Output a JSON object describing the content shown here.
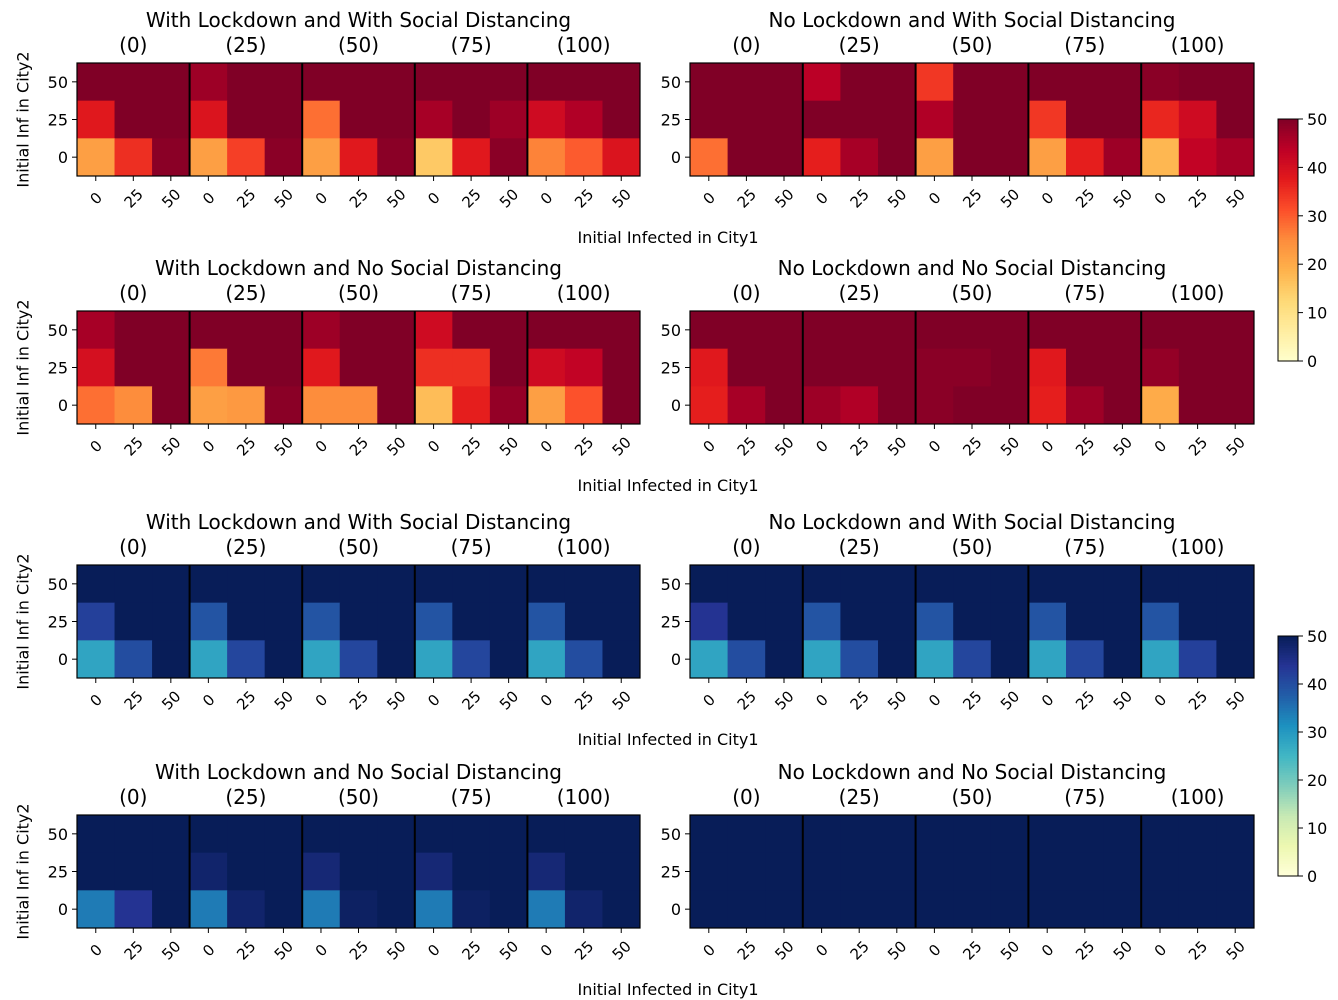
{
  "chart_data": {
    "type": "heatmap",
    "subgroup_labels": [
      "(0)",
      "(25)",
      "(50)",
      "(75)",
      "(100)"
    ],
    "x_ticks": [
      "0",
      "25",
      "50"
    ],
    "y_ticks": [
      "50",
      "25",
      "0"
    ],
    "xlabel": "Initial Infected in City1",
    "ylabel": "Initial Inf in City2",
    "colorbars": [
      {
        "id": "red",
        "colormap": "YlOrRd",
        "range": [
          0,
          50
        ],
        "ticks": [
          "50",
          "40",
          "30",
          "20",
          "10",
          "0"
        ]
      },
      {
        "id": "blue",
        "colormap": "YlGnBu",
        "range": [
          0,
          50
        ],
        "ticks": [
          "50",
          "40",
          "30",
          "20",
          "10",
          "0"
        ]
      }
    ],
    "rows": [
      {
        "xlabel": "Initial Infected in City1",
        "panels": [
          {
            "title": "With Lockdown and With Social Distancing",
            "colormap": "red",
            "grids": [
              [
                [
                  50,
                  50,
                  50
                ],
                [
                  38,
                  50,
                  50
                ],
                [
                  22,
                  35,
                  49
                ]
              ],
              [
                [
                  47,
                  50,
                  50
                ],
                [
                  39,
                  50,
                  50
                ],
                [
                  22,
                  33,
                  49
                ]
              ],
              [
                [
                  50,
                  50,
                  50
                ],
                [
                  28,
                  50,
                  50
                ],
                [
                  22,
                  38,
                  49
                ]
              ],
              [
                [
                  50,
                  50,
                  50
                ],
                [
                  46,
                  50,
                  47
                ],
                [
                  15,
                  38,
                  49
                ]
              ],
              [
                [
                  50,
                  50,
                  50
                ],
                [
                  41,
                  45,
                  50
                ],
                [
                  26,
                  30,
                  39
                ]
              ]
            ]
          },
          {
            "title": "No Lockdown and With Social Distancing",
            "colormap": "red",
            "grids": [
              [
                [
                  50,
                  50,
                  50
                ],
                [
                  50,
                  50,
                  50
                ],
                [
                  28,
                  50,
                  50
                ]
              ],
              [
                [
                  44,
                  50,
                  50
                ],
                [
                  50,
                  50,
                  50
                ],
                [
                  37,
                  46,
                  50
                ]
              ],
              [
                [
                  34,
                  50,
                  50
                ],
                [
                  45,
                  50,
                  50
                ],
                [
                  22,
                  50,
                  50
                ]
              ],
              [
                [
                  50,
                  50,
                  50
                ],
                [
                  34,
                  50,
                  50
                ],
                [
                  22,
                  37,
                  47
                ]
              ],
              [
                [
                  49,
                  50,
                  50
                ],
                [
                  36,
                  41,
                  50
                ],
                [
                  18,
                  43,
                  46
                ]
              ]
            ]
          }
        ]
      },
      {
        "xlabel": "Initial Infected in City1",
        "panels": [
          {
            "title": "With Lockdown and No Social Distancing",
            "colormap": "red",
            "grids": [
              [
                [
                  46,
                  50,
                  50
                ],
                [
                  40,
                  50,
                  50
                ],
                [
                  28,
                  25,
                  50
                ]
              ],
              [
                [
                  50,
                  50,
                  50
                ],
                [
                  27,
                  50,
                  50
                ],
                [
                  22,
                  23,
                  49
                ]
              ],
              [
                [
                  47,
                  50,
                  50
                ],
                [
                  38,
                  50,
                  50
                ],
                [
                  25,
                  25,
                  50
                ]
              ],
              [
                [
                  41,
                  50,
                  50
                ],
                [
                  35,
                  35,
                  50
                ],
                [
                  17,
                  37,
                  48
                ]
              ],
              [
                [
                  50,
                  50,
                  50
                ],
                [
                  41,
                  43,
                  50
                ],
                [
                  22,
                  31,
                  50
                ]
              ]
            ]
          },
          {
            "title": "No Lockdown and No Social Distancing",
            "colormap": "red",
            "grids": [
              [
                [
                  50,
                  50,
                  50
                ],
                [
                  38,
                  50,
                  50
                ],
                [
                  37,
                  46,
                  50
                ]
              ],
              [
                [
                  50,
                  50,
                  50
                ],
                [
                  50,
                  50,
                  50
                ],
                [
                  47,
                  45,
                  50
                ]
              ],
              [
                [
                  50,
                  50,
                  50
                ],
                [
                  49,
                  49,
                  50
                ],
                [
                  49,
                  50,
                  50
                ]
              ],
              [
                [
                  50,
                  50,
                  50
                ],
                [
                  38,
                  50,
                  50
                ],
                [
                  37,
                  47,
                  50
                ]
              ],
              [
                [
                  50,
                  50,
                  50
                ],
                [
                  48,
                  50,
                  50
                ],
                [
                  20,
                  50,
                  50
                ]
              ]
            ]
          }
        ]
      },
      {
        "xlabel": "Initial Infected in City1",
        "panels": [
          {
            "title": "With Lockdown and With Social Distancing",
            "colormap": "blue",
            "grids": [
              [
                [
                  50,
                  50,
                  50
                ],
                [
                  42,
                  50,
                  50
                ],
                [
                  28,
                  40,
                  50
                ]
              ],
              [
                [
                  50,
                  50,
                  50
                ],
                [
                  39,
                  50,
                  50
                ],
                [
                  28,
                  41,
                  50
                ]
              ],
              [
                [
                  50,
                  50,
                  50
                ],
                [
                  39,
                  50,
                  50
                ],
                [
                  28,
                  41,
                  50
                ]
              ],
              [
                [
                  50,
                  50,
                  50
                ],
                [
                  39,
                  50,
                  50
                ],
                [
                  28,
                  41,
                  50
                ]
              ],
              [
                [
                  50,
                  50,
                  50
                ],
                [
                  39,
                  50,
                  50
                ],
                [
                  28,
                  40,
                  50
                ]
              ]
            ]
          },
          {
            "title": "No Lockdown and With Social Distancing",
            "colormap": "blue",
            "grids": [
              [
                [
                  50,
                  50,
                  50
                ],
                [
                  44,
                  50,
                  50
                ],
                [
                  28,
                  40,
                  50
                ]
              ],
              [
                [
                  50,
                  50,
                  50
                ],
                [
                  39,
                  50,
                  50
                ],
                [
                  28,
                  40,
                  50
                ]
              ],
              [
                [
                  50,
                  50,
                  50
                ],
                [
                  39,
                  50,
                  50
                ],
                [
                  28,
                  41,
                  50
                ]
              ],
              [
                [
                  50,
                  50,
                  50
                ],
                [
                  39,
                  50,
                  50
                ],
                [
                  28,
                  41,
                  50
                ]
              ],
              [
                [
                  50,
                  50,
                  50
                ],
                [
                  39,
                  50,
                  50
                ],
                [
                  28,
                  42,
                  50
                ]
              ]
            ]
          }
        ]
      },
      {
        "xlabel": "Initial Infected in City1",
        "panels": [
          {
            "title": "With Lockdown and No Social Distancing",
            "colormap": "blue",
            "grids": [
              [
                [
                  50,
                  50,
                  50
                ],
                [
                  50,
                  50,
                  50
                ],
                [
                  34,
                  44,
                  50
                ]
              ],
              [
                [
                  50,
                  50,
                  50
                ],
                [
                  48,
                  50,
                  50
                ],
                [
                  34,
                  48,
                  50
                ]
              ],
              [
                [
                  50,
                  50,
                  50
                ],
                [
                  47,
                  50,
                  50
                ],
                [
                  34,
                  49,
                  50
                ]
              ],
              [
                [
                  50,
                  50,
                  50
                ],
                [
                  47,
                  50,
                  50
                ],
                [
                  34,
                  49,
                  50
                ]
              ],
              [
                [
                  50,
                  50,
                  50
                ],
                [
                  47,
                  50,
                  50
                ],
                [
                  34,
                  48,
                  50
                ]
              ]
            ]
          },
          {
            "title": "No Lockdown and No Social Distancing",
            "colormap": "blue",
            "grids": [
              [
                [
                  50,
                  50,
                  50
                ],
                [
                  50,
                  50,
                  50
                ],
                [
                  50,
                  50,
                  50
                ]
              ],
              [
                [
                  50,
                  50,
                  50
                ],
                [
                  50,
                  50,
                  50
                ],
                [
                  50,
                  50,
                  50
                ]
              ],
              [
                [
                  50,
                  50,
                  50
                ],
                [
                  50,
                  50,
                  50
                ],
                [
                  50,
                  50,
                  50
                ]
              ],
              [
                [
                  50,
                  50,
                  50
                ],
                [
                  50,
                  50,
                  50
                ],
                [
                  50,
                  50,
                  50
                ]
              ],
              [
                [
                  50,
                  50,
                  50
                ],
                [
                  50,
                  50,
                  50
                ],
                [
                  50,
                  50,
                  50
                ]
              ]
            ]
          }
        ]
      }
    ]
  }
}
